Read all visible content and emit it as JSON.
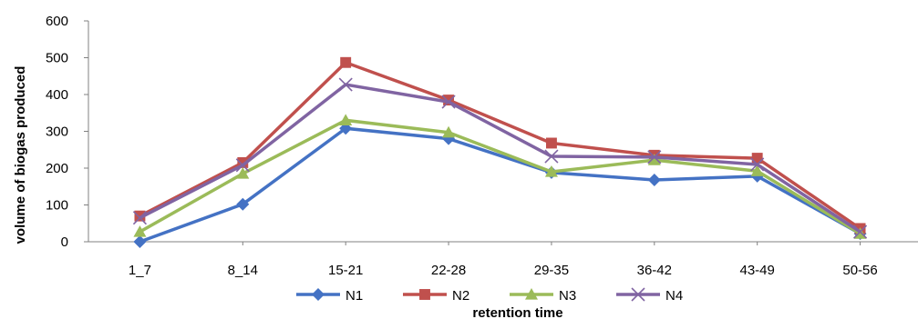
{
  "chart_data": {
    "type": "line",
    "title": "",
    "xlabel": "retention time",
    "ylabel": "volume of biogas  produced",
    "ylim": [
      0,
      600
    ],
    "yticks": [
      0,
      100,
      200,
      300,
      400,
      500,
      600
    ],
    "grid": false,
    "legend_position": "bottom",
    "categories": [
      "1_7",
      "8_14",
      "15-21",
      "22-28",
      "29-35",
      "36-42",
      "43-49",
      "50-56"
    ],
    "series": [
      {
        "name": "N1",
        "color": "#4472C4",
        "marker": "diamond",
        "values": [
          0,
          102,
          308,
          280,
          188,
          168,
          178,
          22
        ]
      },
      {
        "name": "N2",
        "color": "#C0504D",
        "marker": "square",
        "values": [
          70,
          215,
          487,
          385,
          268,
          235,
          227,
          36
        ]
      },
      {
        "name": "N3",
        "color": "#9BBB59",
        "marker": "triangle",
        "values": [
          27,
          185,
          330,
          297,
          190,
          222,
          192,
          22
        ]
      },
      {
        "name": "N4",
        "color": "#8064A2",
        "marker": "x",
        "values": [
          65,
          208,
          427,
          380,
          232,
          230,
          210,
          27
        ]
      }
    ]
  }
}
